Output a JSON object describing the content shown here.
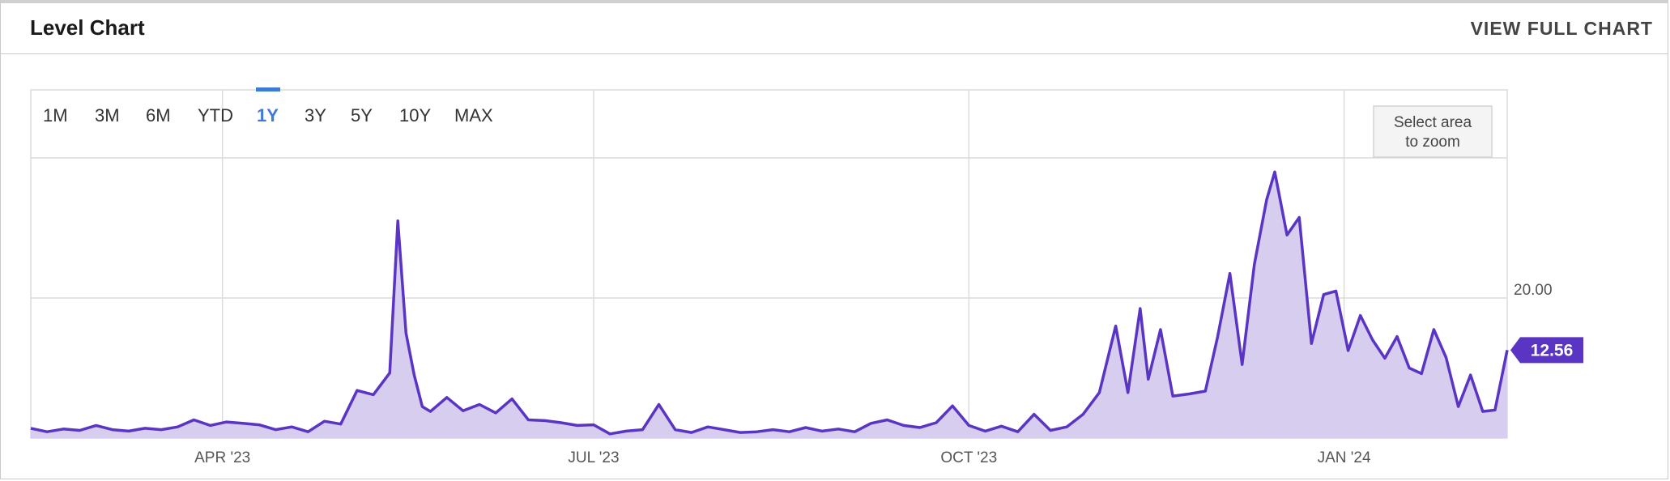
{
  "header": {
    "title": "Level Chart",
    "view_full_label": "VIEW FULL CHART"
  },
  "range_selector": {
    "options": [
      "1M",
      "3M",
      "6M",
      "YTD",
      "1Y",
      "3Y",
      "5Y",
      "10Y",
      "MAX"
    ],
    "selected": "1Y"
  },
  "zoom_hint": [
    "Select area",
    "to zoom"
  ],
  "colors": {
    "line": "#5a35c4",
    "fill": "#d7cdef",
    "accent": "#3e7bd6",
    "label_bg": "#5a35c4"
  },
  "chart_data": {
    "type": "area",
    "x_ticks": [
      "APR '23",
      "JUL '23",
      "OCT '23",
      "JAN '24"
    ],
    "y_ticks": [
      "20.00"
    ],
    "ylim": [
      0,
      40
    ],
    "grid": true,
    "last_value_label": "12.56",
    "x": [
      "2023-02-13",
      "2023-02-17",
      "2023-02-21",
      "2023-02-25",
      "2023-03-01",
      "2023-03-05",
      "2023-03-09",
      "2023-03-13",
      "2023-03-17",
      "2023-03-21",
      "2023-03-25",
      "2023-03-29",
      "2023-04-02",
      "2023-04-06",
      "2023-04-10",
      "2023-04-14",
      "2023-04-18",
      "2023-04-22",
      "2023-04-26",
      "2023-04-30",
      "2023-05-04",
      "2023-05-08",
      "2023-05-12",
      "2023-05-14",
      "2023-05-16",
      "2023-05-18",
      "2023-05-20",
      "2023-05-22",
      "2023-05-26",
      "2023-05-30",
      "2023-06-03",
      "2023-06-07",
      "2023-06-11",
      "2023-06-15",
      "2023-06-19",
      "2023-06-23",
      "2023-06-27",
      "2023-07-01",
      "2023-07-05",
      "2023-07-09",
      "2023-07-13",
      "2023-07-17",
      "2023-07-21",
      "2023-07-25",
      "2023-07-29",
      "2023-08-02",
      "2023-08-06",
      "2023-08-10",
      "2023-08-14",
      "2023-08-18",
      "2023-08-22",
      "2023-08-26",
      "2023-08-30",
      "2023-09-03",
      "2023-09-07",
      "2023-09-11",
      "2023-09-15",
      "2023-09-19",
      "2023-09-23",
      "2023-09-27",
      "2023-10-01",
      "2023-10-05",
      "2023-10-09",
      "2023-10-13",
      "2023-10-17",
      "2023-10-21",
      "2023-10-25",
      "2023-10-29",
      "2023-11-02",
      "2023-11-06",
      "2023-11-09",
      "2023-11-12",
      "2023-11-14",
      "2023-11-17",
      "2023-11-20",
      "2023-11-24",
      "2023-11-28",
      "2023-12-01",
      "2023-12-04",
      "2023-12-07",
      "2023-12-10",
      "2023-12-13",
      "2023-12-15",
      "2023-12-18",
      "2023-12-21",
      "2023-12-24",
      "2023-12-27",
      "2023-12-30",
      "2024-01-02",
      "2024-01-05",
      "2024-01-08",
      "2024-01-11",
      "2024-01-14",
      "2024-01-17",
      "2024-01-20",
      "2024-01-23",
      "2024-01-26",
      "2024-01-29",
      "2024-02-01",
      "2024-02-04",
      "2024-02-07",
      "2024-02-10"
    ],
    "values": [
      1.4,
      0.9,
      1.3,
      1.1,
      1.8,
      1.2,
      1.0,
      1.4,
      1.2,
      1.6,
      2.6,
      1.8,
      2.3,
      2.1,
      1.9,
      1.2,
      1.6,
      0.9,
      2.4,
      2.0,
      6.8,
      6.2,
      9.3,
      31.0,
      15.0,
      9.0,
      4.5,
      3.8,
      5.8,
      3.9,
      4.8,
      3.6,
      5.6,
      2.6,
      2.5,
      2.2,
      1.8,
      1.9,
      0.6,
      1.0,
      1.2,
      4.8,
      1.2,
      0.8,
      1.6,
      1.2,
      0.8,
      0.9,
      1.2,
      0.9,
      1.5,
      1.0,
      1.3,
      0.9,
      2.1,
      2.6,
      1.8,
      1.5,
      2.2,
      4.6,
      1.8,
      1.0,
      1.7,
      0.9,
      3.4,
      1.1,
      1.6,
      3.4,
      6.5,
      16.0,
      6.5,
      18.5,
      8.4,
      15.5,
      6.0,
      6.3,
      6.7,
      14.5,
      23.5,
      10.5,
      24.8,
      34.0,
      38.0,
      29.0,
      31.5,
      13.5,
      20.5,
      21.0,
      12.5,
      17.5,
      14.0,
      11.4,
      14.5,
      10.0,
      9.2,
      15.5,
      11.5,
      4.5,
      9.0,
      3.8,
      4.0,
      12.56
    ]
  }
}
